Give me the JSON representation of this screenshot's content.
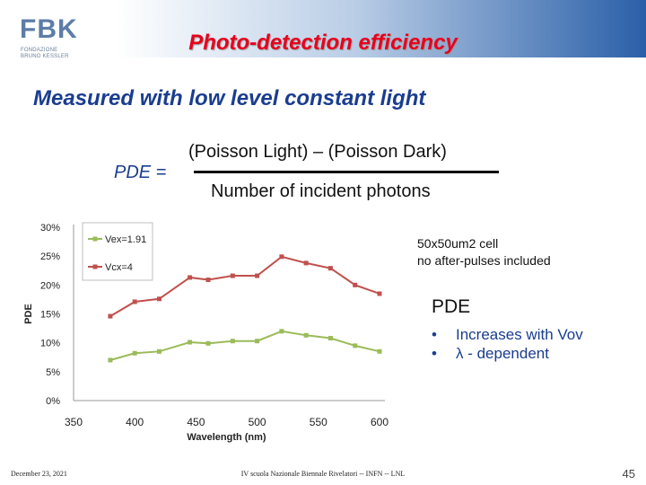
{
  "header": {
    "logo_letters": "FBK",
    "logo_line1": "FONDAZIONE",
    "logo_line2": "BRUNO KESSLER",
    "title": "Photo-detection efficiency"
  },
  "subtitle": "Measured with low level constant light",
  "formula": {
    "lhs": "PDE =",
    "numerator": "(Poisson Light) – (Poisson Dark)",
    "denominator": "Number of incident photons"
  },
  "note": {
    "line1": "50x50um2 cell",
    "line2": "no after-pulses included"
  },
  "pde_heading": "PDE",
  "bullets": [
    "Increases with Vov",
    "λ - dependent"
  ],
  "footer": {
    "date": "December 23, 2021",
    "center": "IV scuola Nazionale Biennale Rivelatori -- INFN -- LNL",
    "page": "45"
  },
  "chart_data": {
    "type": "line",
    "title": "",
    "xlabel": "Wavelength (nm)",
    "ylabel": "PDE",
    "xlim": [
      350,
      600
    ],
    "ylim": [
      0,
      30
    ],
    "x_ticks": [
      "350",
      "400",
      "450",
      "500",
      "550",
      "600"
    ],
    "y_ticks": [
      "0%",
      "5%",
      "10%",
      "15%",
      "20%",
      "25%",
      "30%"
    ],
    "legend_position": "top-left",
    "series": [
      {
        "name": "Vex=1.91",
        "color": "#9bbb59",
        "x": [
          380,
          400,
          420,
          445,
          460,
          480,
          500,
          520,
          540,
          560,
          580,
          600
        ],
        "values": [
          7.0,
          8.2,
          8.5,
          10.1,
          9.9,
          10.3,
          10.3,
          12.0,
          11.3,
          10.8,
          9.5,
          8.5
        ]
      },
      {
        "name": "Vcx=4",
        "color": "#c0504d",
        "x": [
          380,
          400,
          420,
          445,
          460,
          480,
          500,
          520,
          540,
          560,
          580,
          600
        ],
        "values": [
          14.6,
          17.1,
          17.6,
          21.3,
          20.9,
          21.6,
          21.6,
          24.9,
          23.8,
          22.9,
          20.0,
          18.5
        ]
      }
    ]
  }
}
